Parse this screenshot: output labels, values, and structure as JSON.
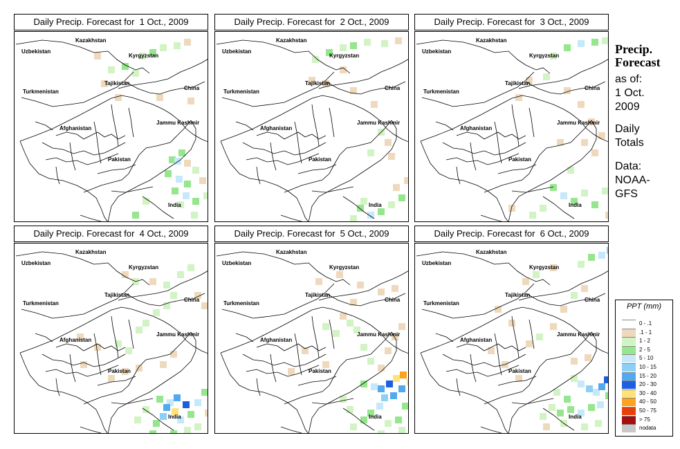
{
  "panels": [
    {
      "title": "Daily Precip. Forecast for  1 Oct., 2009",
      "cells": [
        [
          228,
          210,
          3
        ],
        [
          236,
          212,
          4
        ],
        [
          242,
          200,
          3
        ],
        [
          250,
          215,
          1
        ],
        [
          222,
          230,
          3
        ],
        [
          238,
          238,
          4
        ],
        [
          250,
          245,
          3
        ],
        [
          262,
          225,
          2
        ],
        [
          232,
          255,
          3
        ],
        [
          248,
          262,
          4
        ],
        [
          262,
          270,
          3
        ],
        [
          278,
          262,
          2
        ],
        [
          285,
          280,
          3
        ],
        [
          240,
          275,
          2
        ],
        [
          260,
          290,
          2
        ],
        [
          272,
          240,
          1
        ],
        [
          285,
          235,
          2
        ],
        [
          140,
          80,
          2
        ],
        [
          160,
          75,
          3
        ],
        [
          175,
          85,
          2
        ],
        [
          185,
          60,
          2
        ],
        [
          200,
          55,
          3
        ],
        [
          215,
          48,
          2
        ],
        [
          235,
          45,
          2
        ],
        [
          250,
          40,
          1
        ],
        [
          130,
          100,
          1
        ],
        [
          150,
          120,
          1
        ],
        [
          120,
          60,
          1
        ],
        [
          210,
          120,
          1
        ],
        [
          255,
          125,
          1
        ],
        [
          175,
          290,
          3
        ],
        [
          190,
          270,
          2
        ]
      ]
    },
    {
      "title": "Daily Precip. Forecast for  2 Oct., 2009",
      "cells": [
        [
          210,
          280,
          3
        ],
        [
          225,
          290,
          4
        ],
        [
          240,
          285,
          3
        ],
        [
          255,
          275,
          2
        ],
        [
          270,
          265,
          3
        ],
        [
          200,
          295,
          2
        ],
        [
          215,
          270,
          2
        ],
        [
          262,
          250,
          1
        ],
        [
          278,
          240,
          1
        ],
        [
          145,
          65,
          2
        ],
        [
          165,
          55,
          3
        ],
        [
          185,
          48,
          2
        ],
        [
          200,
          45,
          3
        ],
        [
          220,
          40,
          2
        ],
        [
          245,
          42,
          2
        ],
        [
          265,
          38,
          1
        ],
        [
          140,
          95,
          1
        ],
        [
          160,
          100,
          1
        ],
        [
          185,
          80,
          1
        ],
        [
          200,
          110,
          1
        ],
        [
          230,
          130,
          1
        ],
        [
          240,
          170,
          2
        ],
        [
          225,
          200,
          2
        ],
        [
          250,
          185,
          1
        ],
        [
          255,
          205,
          1
        ]
      ]
    },
    {
      "title": "Daily Precip. Forecast for  3 Oct., 2009",
      "cells": [
        [
          200,
          250,
          3
        ],
        [
          215,
          262,
          4
        ],
        [
          230,
          270,
          3
        ],
        [
          245,
          258,
          2
        ],
        [
          260,
          275,
          3
        ],
        [
          185,
          280,
          2
        ],
        [
          170,
          290,
          2
        ],
        [
          275,
          255,
          2
        ],
        [
          280,
          290,
          1
        ],
        [
          140,
          280,
          1
        ],
        [
          200,
          60,
          2
        ],
        [
          220,
          48,
          3
        ],
        [
          240,
          42,
          4
        ],
        [
          260,
          40,
          3
        ],
        [
          275,
          38,
          2
        ],
        [
          190,
          90,
          2
        ],
        [
          165,
          95,
          1
        ],
        [
          150,
          120,
          1
        ],
        [
          220,
          110,
          1
        ],
        [
          240,
          130,
          1
        ],
        [
          255,
          155,
          1
        ],
        [
          270,
          175,
          1
        ],
        [
          260,
          200,
          1
        ],
        [
          245,
          185,
          1
        ],
        [
          210,
          185,
          1
        ],
        [
          225,
          225,
          2
        ]
      ]
    },
    {
      "title": "Daily Precip. Forecast for  4 Oct., 2009",
      "cells": [
        [
          210,
          250,
          3
        ],
        [
          225,
          255,
          4
        ],
        [
          235,
          248,
          6
        ],
        [
          248,
          258,
          7
        ],
        [
          232,
          268,
          8
        ],
        [
          220,
          262,
          6
        ],
        [
          215,
          275,
          5
        ],
        [
          205,
          285,
          3
        ],
        [
          240,
          280,
          4
        ],
        [
          255,
          272,
          3
        ],
        [
          265,
          255,
          4
        ],
        [
          275,
          240,
          3
        ],
        [
          285,
          230,
          2
        ],
        [
          190,
          265,
          2
        ],
        [
          178,
          280,
          2
        ],
        [
          200,
          300,
          3
        ],
        [
          230,
          300,
          3
        ],
        [
          250,
          295,
          2
        ],
        [
          265,
          290,
          2
        ],
        [
          280,
          270,
          1
        ],
        [
          150,
          170,
          2
        ],
        [
          165,
          180,
          2
        ],
        [
          180,
          150,
          2
        ],
        [
          190,
          140,
          2
        ],
        [
          205,
          125,
          2
        ],
        [
          220,
          115,
          2
        ],
        [
          230,
          100,
          2
        ],
        [
          220,
          85,
          2
        ],
        [
          240,
          70,
          2
        ],
        [
          255,
          60,
          2
        ],
        [
          230,
          185,
          1
        ],
        [
          215,
          200,
          1
        ],
        [
          180,
          205,
          1
        ],
        [
          160,
          210,
          1
        ],
        [
          140,
          220,
          1
        ],
        [
          265,
          100,
          1
        ],
        [
          275,
          115,
          1
        ],
        [
          160,
          70,
          1
        ],
        [
          175,
          80,
          2
        ],
        [
          200,
          80,
          1
        ],
        [
          120,
          175,
          1
        ],
        [
          100,
          200,
          1
        ],
        [
          95,
          160,
          1
        ]
      ]
    },
    {
      "title": "Daily Precip. Forecast for  5 Oct., 2009",
      "cells": [
        [
          215,
          228,
          3
        ],
        [
          230,
          232,
          4
        ],
        [
          240,
          235,
          6
        ],
        [
          252,
          228,
          7
        ],
        [
          262,
          220,
          8
        ],
        [
          272,
          215,
          9
        ],
        [
          282,
          225,
          8
        ],
        [
          270,
          235,
          6
        ],
        [
          258,
          245,
          6
        ],
        [
          245,
          248,
          5
        ],
        [
          238,
          260,
          4
        ],
        [
          225,
          270,
          3
        ],
        [
          215,
          280,
          3
        ],
        [
          200,
          290,
          2
        ],
        [
          195,
          265,
          2
        ],
        [
          185,
          250,
          2
        ],
        [
          275,
          260,
          3
        ],
        [
          285,
          260,
          2
        ],
        [
          265,
          280,
          3
        ],
        [
          250,
          285,
          2
        ],
        [
          240,
          300,
          2
        ],
        [
          270,
          295,
          2
        ],
        [
          215,
          175,
          2
        ],
        [
          205,
          150,
          2
        ],
        [
          195,
          140,
          2
        ],
        [
          225,
          195,
          2
        ],
        [
          240,
          205,
          1
        ],
        [
          250,
          180,
          1
        ],
        [
          260,
          160,
          1
        ],
        [
          270,
          145,
          1
        ],
        [
          160,
          145,
          2
        ],
        [
          175,
          155,
          2
        ],
        [
          185,
          130,
          1
        ],
        [
          200,
          110,
          1
        ],
        [
          240,
          95,
          1
        ],
        [
          260,
          90,
          1
        ],
        [
          210,
          85,
          1
        ],
        [
          180,
          70,
          1
        ],
        [
          150,
          80,
          1
        ],
        [
          130,
          180,
          1
        ],
        [
          110,
          210,
          1
        ],
        [
          160,
          200,
          1
        ]
      ]
    },
    {
      "title": "Daily Precip. Forecast for  6 Oct., 2009",
      "cells": [
        [
          230,
          220,
          2
        ],
        [
          240,
          228,
          4
        ],
        [
          252,
          235,
          5
        ],
        [
          262,
          240,
          4
        ],
        [
          270,
          232,
          6
        ],
        [
          278,
          222,
          7
        ],
        [
          285,
          215,
          9
        ],
        [
          280,
          245,
          3
        ],
        [
          268,
          258,
          4
        ],
        [
          255,
          262,
          3
        ],
        [
          240,
          270,
          4
        ],
        [
          225,
          265,
          3
        ],
        [
          210,
          270,
          3
        ],
        [
          198,
          262,
          2
        ],
        [
          185,
          275,
          2
        ],
        [
          215,
          285,
          2
        ],
        [
          245,
          290,
          2
        ],
        [
          265,
          285,
          2
        ],
        [
          205,
          240,
          2
        ],
        [
          220,
          250,
          3
        ],
        [
          190,
          290,
          1
        ],
        [
          230,
          195,
          1
        ],
        [
          250,
          190,
          1
        ],
        [
          165,
          170,
          1
        ],
        [
          180,
          160,
          2
        ],
        [
          200,
          145,
          1
        ],
        [
          215,
          120,
          1
        ],
        [
          230,
          100,
          2
        ],
        [
          245,
          90,
          1
        ],
        [
          240,
          55,
          2
        ],
        [
          255,
          45,
          3
        ],
        [
          270,
          42,
          4
        ],
        [
          282,
          35,
          5
        ],
        [
          160,
          80,
          1
        ],
        [
          175,
          70,
          2
        ],
        [
          200,
          60,
          1
        ],
        [
          140,
          140,
          1
        ],
        [
          120,
          120,
          1
        ],
        [
          130,
          200,
          1
        ],
        [
          150,
          220,
          1
        ],
        [
          110,
          180,
          1
        ]
      ]
    }
  ],
  "map_labels": {
    "kazakhstan": "Kazakhstan",
    "uzbekistan": "Uzbekistan",
    "kyrgyzstan": "Kyrgyzstan",
    "tajikistan": "Tajikistan",
    "china": "China",
    "turkmenistan": "Turkmenistan",
    "afghanistan": "Afghanistan",
    "jammu_kashmir": "Jammu Kashmir",
    "pakistan": "Pakistan",
    "india": "India"
  },
  "side": {
    "title_line1": "Precip.",
    "title_line2": "Forecast",
    "as_of": "as of:",
    "date_line1": "1 Oct.",
    "date_line2": "2009",
    "daily": "Daily",
    "totals": "Totals",
    "data": "Data:",
    "source_line1": "NOAA-",
    "source_line2": "GFS"
  },
  "legend": {
    "title": "PPT (mm)",
    "items": [
      {
        "label": "0 - .1",
        "color": "#ffffff"
      },
      {
        "label": ".1 - 1",
        "color": "#efd9bc"
      },
      {
        "label": "1 - 2",
        "color": "#d2f3c3"
      },
      {
        "label": "2 - 5",
        "color": "#95e68d"
      },
      {
        "label": "5 - 10",
        "color": "#c5e8fa"
      },
      {
        "label": "10 - 15",
        "color": "#8ecff5"
      },
      {
        "label": "15 - 20",
        "color": "#53a9ef"
      },
      {
        "label": "20 - 30",
        "color": "#1c5fe0"
      },
      {
        "label": "30 - 40",
        "color": "#ffe27a"
      },
      {
        "label": "40 - 50",
        "color": "#ffa21e"
      },
      {
        "label": "50 - 75",
        "color": "#e8400d"
      },
      {
        "label": "> 75",
        "color": "#a50e0e"
      },
      {
        "label": "nodata",
        "color": "#c8c8c8"
      }
    ]
  }
}
